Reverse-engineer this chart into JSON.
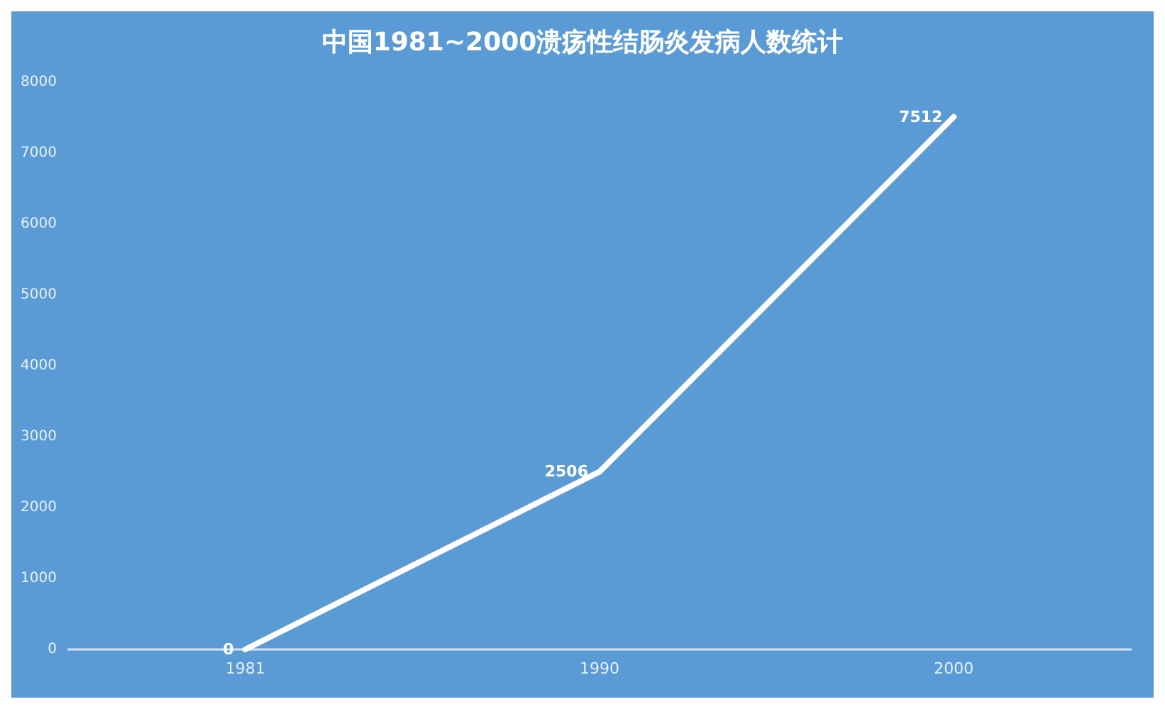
{
  "chart_data": {
    "type": "line",
    "title": "中国1981~2000溃疡性结肠炎发病人数统计",
    "categories": [
      "1981",
      "1990",
      "2000"
    ],
    "values": [
      0,
      2506,
      7512
    ],
    "color": "#ffffff",
    "ylim": [
      0,
      8000
    ],
    "yticks": [
      0,
      1000,
      2000,
      3000,
      4000,
      5000,
      6000,
      7000,
      8000
    ],
    "grid": false,
    "marker": "none",
    "line_style": "solid",
    "data_labels": true
  }
}
